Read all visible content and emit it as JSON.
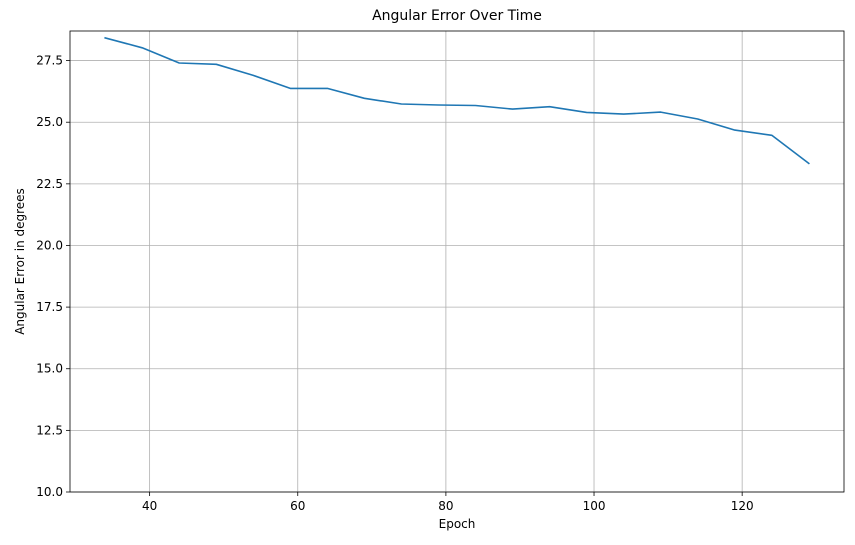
{
  "chart_data": {
    "type": "line",
    "title": "Angular Error Over Time",
    "xlabel": "Epoch",
    "ylabel": "Angular Error in degrees",
    "xlim": [
      29.25,
      133.75
    ],
    "ylim": [
      10.0,
      28.7
    ],
    "xticks": [
      40,
      60,
      80,
      100,
      120
    ],
    "xtick_labels": [
      "40",
      "60",
      "80",
      "100",
      "120"
    ],
    "yticks": [
      10.0,
      12.5,
      15.0,
      17.5,
      20.0,
      22.5,
      25.0,
      27.5
    ],
    "ytick_labels": [
      "10.0",
      "12.5",
      "15.0",
      "17.5",
      "20.0",
      "22.5",
      "25.0",
      "27.5"
    ],
    "grid": true,
    "series": [
      {
        "color": "#1f77b4",
        "x": [
          34,
          39,
          44,
          49,
          54,
          59,
          64,
          69,
          74,
          79,
          84,
          89,
          94,
          99,
          104,
          109,
          114,
          119,
          124,
          129
        ],
        "y": [
          28.42,
          28.02,
          27.4,
          27.35,
          26.9,
          26.37,
          26.37,
          25.97,
          25.74,
          25.7,
          25.68,
          25.53,
          25.63,
          25.4,
          25.33,
          25.41,
          25.13,
          24.68,
          24.47,
          23.33
        ]
      }
    ]
  }
}
